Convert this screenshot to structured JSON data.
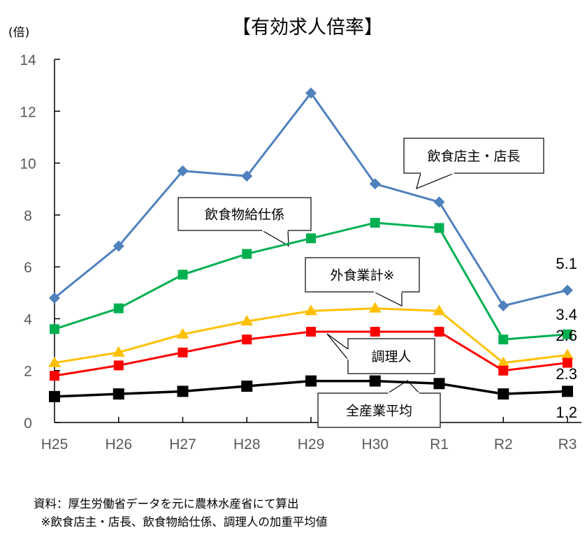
{
  "chart_data": {
    "type": "line",
    "title": "【有効求人倍率】",
    "ylabel": "(倍)",
    "xlabel": "",
    "ylim": [
      0,
      14
    ],
    "yticks": [
      0,
      2,
      4,
      6,
      8,
      10,
      12,
      14
    ],
    "grid": false,
    "categories": [
      "H25",
      "H26",
      "H27",
      "H28",
      "H29",
      "H30",
      "R1",
      "R2",
      "R3"
    ],
    "series": [
      {
        "name": "飲食店主・店長",
        "color": "#4f81bd",
        "marker": "diamond",
        "values": [
          4.8,
          6.8,
          9.7,
          9.5,
          12.7,
          9.2,
          8.5,
          4.5,
          5.1
        ],
        "end_label": "5.1"
      },
      {
        "name": "飲食物給仕係",
        "color": "#00b050",
        "marker": "square",
        "values": [
          3.6,
          4.4,
          5.7,
          6.5,
          7.1,
          7.7,
          7.5,
          3.2,
          3.4
        ],
        "end_label": "3.4"
      },
      {
        "name": "外食業計※",
        "color": "#ffc000",
        "marker": "triangle",
        "values": [
          2.3,
          2.7,
          3.4,
          3.9,
          4.3,
          4.4,
          4.3,
          2.3,
          2.6
        ],
        "end_label": "2.6"
      },
      {
        "name": "調理人",
        "color": "#ff0000",
        "marker": "square",
        "values": [
          1.8,
          2.2,
          2.7,
          3.2,
          3.5,
          3.5,
          3.5,
          2.0,
          2.3
        ],
        "end_label": "2.3"
      },
      {
        "name": "全産業平均",
        "color": "#000000",
        "marker": "square",
        "values": [
          1.0,
          1.1,
          1.2,
          1.4,
          1.6,
          1.6,
          1.5,
          1.1,
          1.2
        ],
        "end_label": "1.2"
      }
    ]
  },
  "footnotes": [
    "資料：厚生労働省データを元に農林水産省にて算出",
    "  ※飲食店主・店長、飲食物給仕係、調理人の加重平均値"
  ]
}
